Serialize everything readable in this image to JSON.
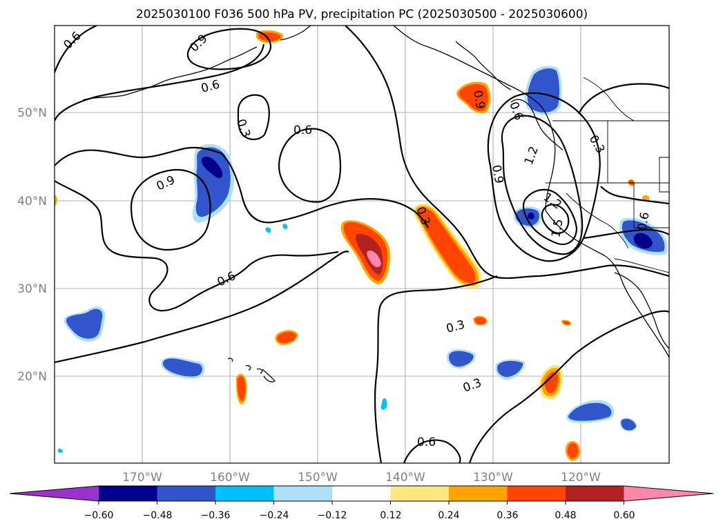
{
  "title": "2025030100 F036 500 hPa PV, precipitation PC (2025030500 - 2025030600)",
  "lat_labels": [
    "50°N",
    "40°N",
    "30°N",
    "20°N"
  ],
  "lon_labels": [
    "170°W",
    "160°W",
    "150°W",
    "140°W",
    "130°W",
    "120°W"
  ],
  "colorbar": {
    "ticks": [
      "−0.60",
      "−0.48",
      "−0.36",
      "−0.24",
      "−0.12",
      "0.12",
      "0.24",
      "0.36",
      "0.48",
      "0.60"
    ],
    "colors": {
      "under": "#9933cc",
      "bins": [
        "#00008b",
        "#3355cc",
        "#00bfff",
        "#aee0fa",
        "#ffffff",
        "#ffe680",
        "#ffa500",
        "#ff4500",
        "#b22222"
      ],
      "over": "#ff88aa"
    }
  },
  "contour_labels": {
    "c1": "0.6",
    "c2": "0.9",
    "c3": "0.6",
    "c4": "0.3",
    "c5": "0.6",
    "c6": "0.9",
    "c7": "0.6",
    "c8": "0.3",
    "c9": "0.3",
    "c10": "0.6",
    "c11": "0.9",
    "c12": "1.2",
    "c13": "1.2",
    "c14": "1.5",
    "c15": "0.3",
    "c16": "0.9",
    "c17": "0.6",
    "c18": "0.3",
    "c19": "0.6"
  }
}
